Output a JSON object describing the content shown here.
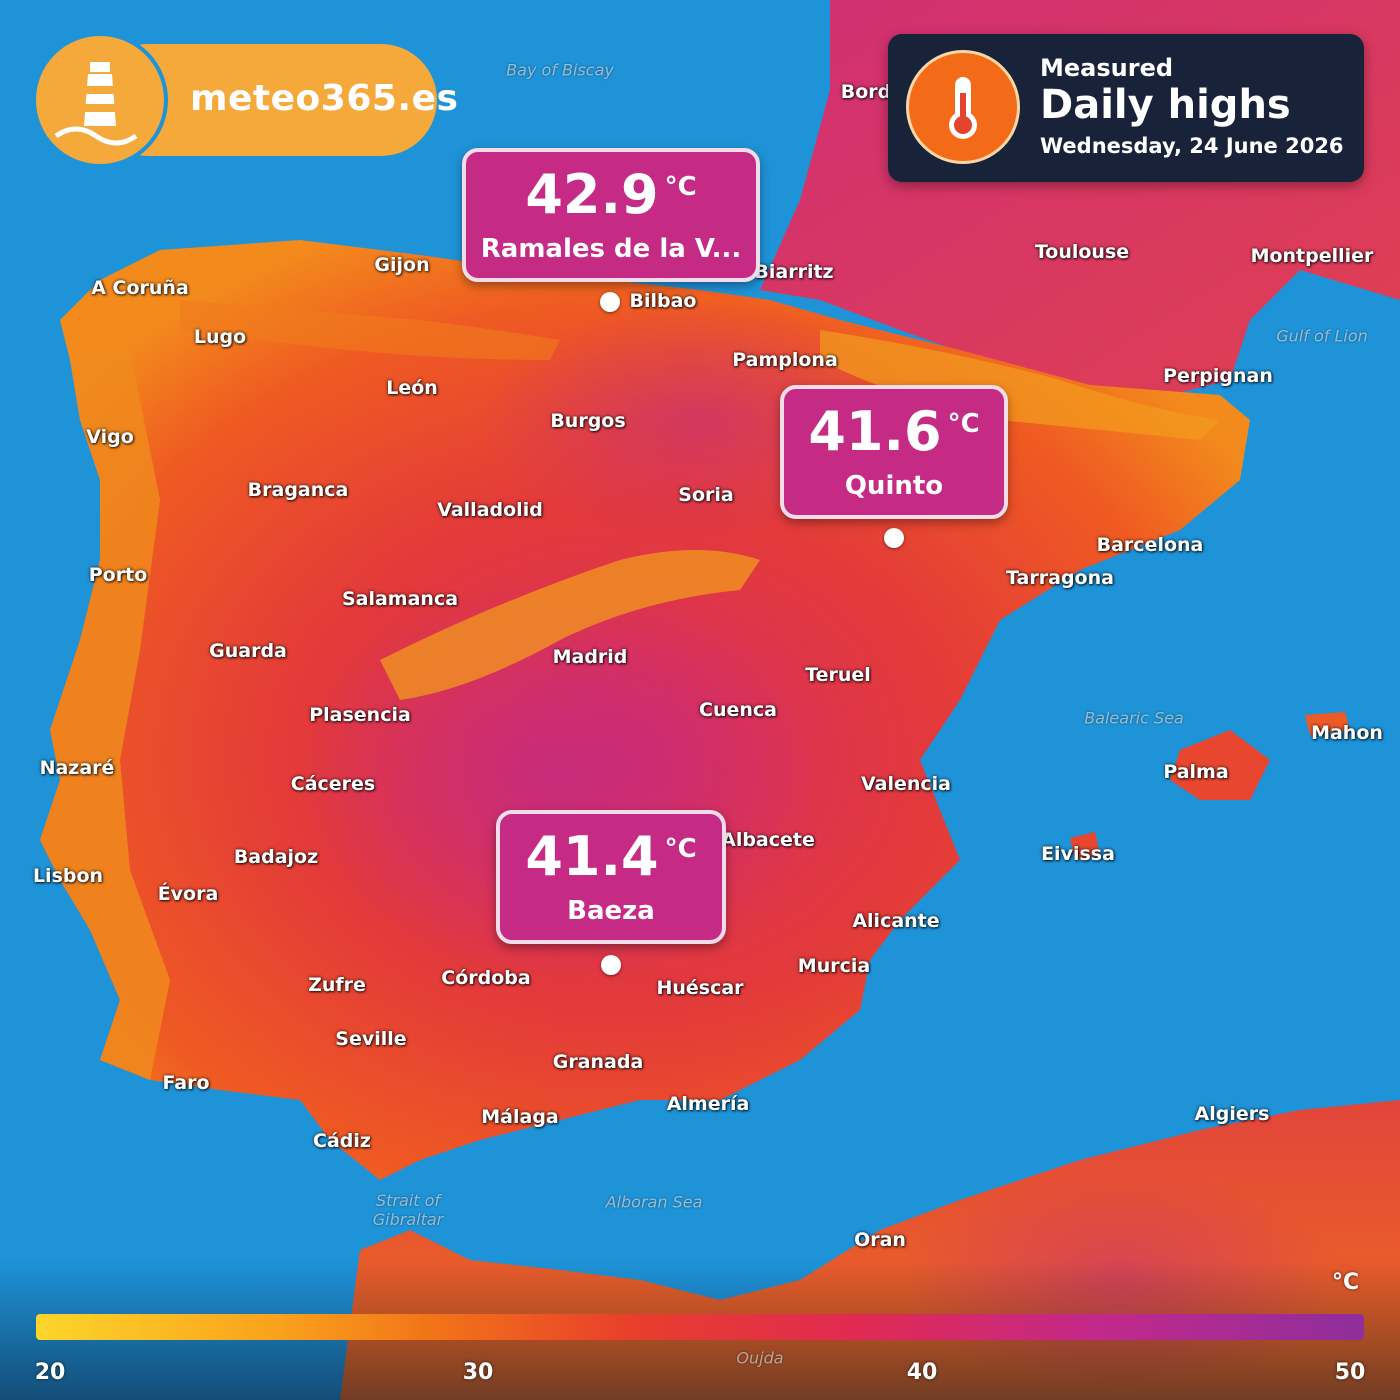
{
  "brand": {
    "name": "meteo365.es",
    "logo_icon": "lighthouse-icon"
  },
  "header": {
    "label_small": "Measured",
    "title": "Daily highs",
    "date": "Wednesday, 24 June 2026",
    "icon": "thermometer-icon"
  },
  "callouts": [
    {
      "temp": "42.9",
      "unit": "°C",
      "place": "Ramales de la V..."
    },
    {
      "temp": "41.6",
      "unit": "°C",
      "place": "Quinto"
    },
    {
      "temp": "41.4",
      "unit": "°C",
      "place": "Baeza"
    }
  ],
  "cities": [
    "Gijon",
    "A Coruña",
    "Lugo",
    "León",
    "Burgos",
    "Vigo",
    "Braganca",
    "Valladolid",
    "Soria",
    "Porto",
    "Salamanca",
    "Guarda",
    "Madrid",
    "Plasencia",
    "Nazaré",
    "Cáceres",
    "Badajoz",
    "Lisbon",
    "Évora",
    "Zufre",
    "Córdoba",
    "Seville",
    "Faro",
    "Cádiz",
    "Málaga",
    "Granada",
    "Almería",
    "Huéscar",
    "Murcia",
    "Alicante",
    "Albacete",
    "Cuenca",
    "Teruel",
    "Valencia",
    "Tarragona",
    "Barcelona",
    "Pamplona",
    "Bilbao",
    "Biarritz",
    "Toulouse",
    "Montpellier",
    "Perpignan",
    "Palma",
    "Mahon",
    "Eivissa",
    "Algiers",
    "Oran",
    "Bord"
  ],
  "seas": [
    "Bay of Biscay",
    "Gulf of Lion",
    "Balearic Sea",
    "Alboran Sea",
    "Strait of Gibraltar",
    "Oujda"
  ],
  "legend": {
    "unit": "°C",
    "ticks": [
      "20",
      "30",
      "40",
      "50"
    ]
  },
  "colors": {
    "sea": "#1e93d8",
    "callout": "#c52b85",
    "brand": "#f5a93b",
    "header_bg": "#182238"
  }
}
